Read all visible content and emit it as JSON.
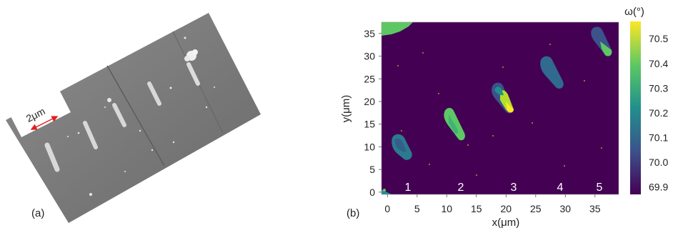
{
  "panel_a": {
    "label": "(a)",
    "scalebar": "2μm"
  },
  "panel_b": {
    "label": "(b)",
    "colorbar_title": "ω(°)",
    "colorbar_ticks": [
      "70.5",
      "70.4",
      "70.3",
      "70.2",
      "70.1",
      "70.0",
      "69.9"
    ],
    "region_numbers": [
      "1",
      "2",
      "3",
      "4",
      "5"
    ]
  },
  "chart_data": {
    "type": "heatmap",
    "xlabel": "x(μm)",
    "ylabel": "y(μm)",
    "xlim": [
      -1,
      39
    ],
    "ylim": [
      -0.5,
      37.5
    ],
    "xticks": [
      0,
      5,
      10,
      15,
      20,
      25,
      30,
      35
    ],
    "yticks": [
      0,
      5,
      10,
      15,
      20,
      25,
      30,
      35
    ],
    "color_range": [
      69.87,
      70.57
    ],
    "background_value": 69.9,
    "colormap": [
      "#440154",
      "#3b528b",
      "#21908d",
      "#5dc863",
      "#fde725"
    ],
    "regions": [
      {
        "label": "1",
        "x": 3.2,
        "y": 10.2,
        "value_low": 70.05,
        "value_high": 70.25
      },
      {
        "label": "2",
        "x": 13.2,
        "y": 15.5,
        "value_low": 70.3,
        "value_high": 70.38
      },
      {
        "label": "3",
        "x": 21.2,
        "y": 21.5,
        "value_low": 70.1,
        "value_high": 70.55
      },
      {
        "label": "4",
        "x": 29.0,
        "y": 28.5,
        "value_low": 70.02,
        "value_high": 70.1
      },
      {
        "label": "5",
        "x": 36.0,
        "y": 33.0,
        "value_low": 70.0,
        "value_high": 70.35
      }
    ]
  }
}
